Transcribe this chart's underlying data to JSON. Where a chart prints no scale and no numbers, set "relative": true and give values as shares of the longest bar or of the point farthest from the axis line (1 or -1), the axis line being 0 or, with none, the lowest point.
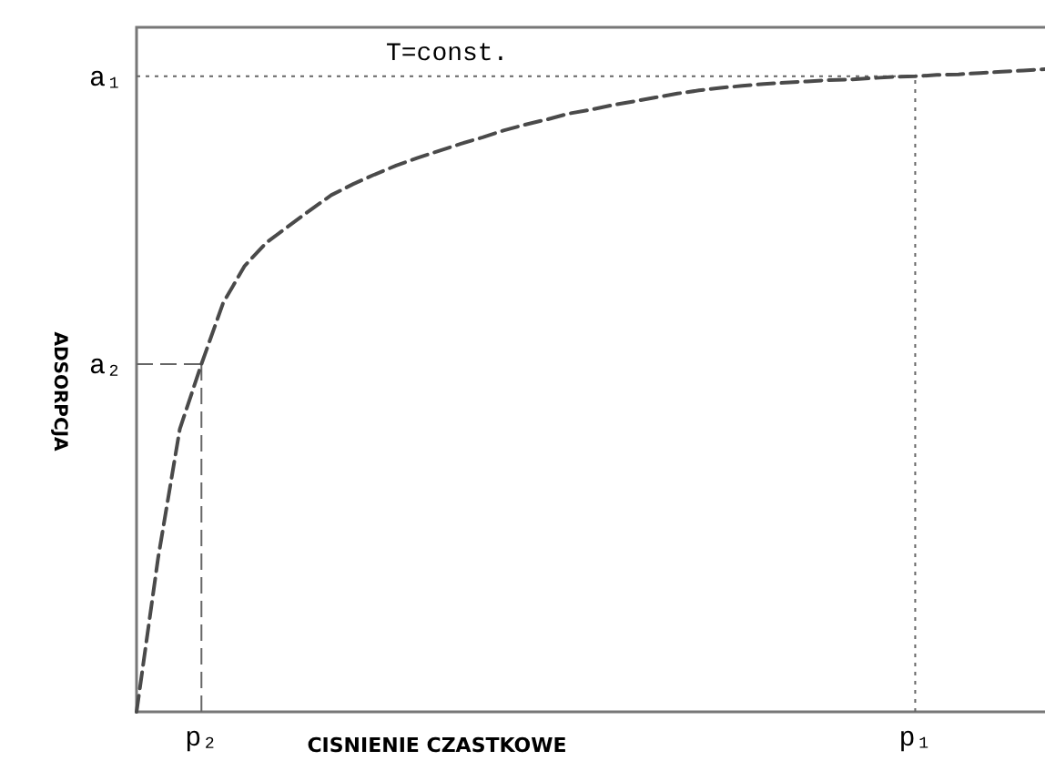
{
  "chart_data": {
    "type": "line",
    "title": "T=const.",
    "xlabel": "CISNIENIE CZASTKOWE",
    "ylabel": "ADSORPCJA",
    "relative": true,
    "line_style": "dashed",
    "categories": [
      null,
      null,
      null,
      "p₂",
      null,
      null,
      null,
      null,
      null,
      null,
      null,
      null,
      null,
      null,
      null,
      null,
      null,
      null,
      null,
      null,
      null,
      null,
      null,
      null,
      null,
      null,
      null,
      null,
      null,
      null,
      null,
      null,
      null,
      null,
      null,
      null,
      "p₁",
      null,
      null,
      null,
      null,
      null,
      null
    ],
    "series": [
      {
        "color": "#4a4a4a",
        "values": [
          0.0,
          0.24,
          0.44,
          0.541,
          0.636,
          0.694,
          0.73,
          0.755,
          0.78,
          0.804,
          0.821,
          0.836,
          0.85,
          0.862,
          0.873,
          0.884,
          0.894,
          0.905,
          0.914,
          0.922,
          0.931,
          0.937,
          0.944,
          0.95,
          0.956,
          0.962,
          0.967,
          0.971,
          0.974,
          0.977,
          0.979,
          0.981,
          0.983,
          0.984,
          0.986,
          0.988,
          0.989,
          0.991,
          0.992,
          0.994,
          0.996,
          0.998,
          1.0
        ]
      }
    ],
    "ref_lines": [
      {
        "axis": "y",
        "value": 0.989,
        "label": "a₁",
        "line_style": "dotted"
      },
      {
        "axis": "y",
        "value": 0.541,
        "label": "a₂",
        "line_style": "dashed"
      },
      {
        "axis": "x",
        "value": "p₂",
        "line_style": "dashed"
      },
      {
        "axis": "x",
        "value": "p₁",
        "line_style": "dotted"
      }
    ]
  }
}
